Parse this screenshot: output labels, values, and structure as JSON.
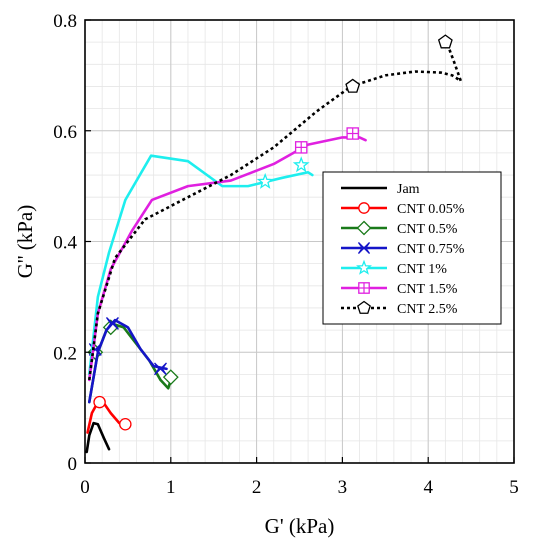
{
  "chart_data": {
    "type": "line",
    "title": "",
    "xlabel": "G' (kPa)",
    "ylabel": "G'' (kPa)",
    "xlim": [
      0,
      5
    ],
    "ylim": [
      0,
      0.8
    ],
    "x_ticks": [
      0,
      1,
      2,
      3,
      4,
      5
    ],
    "y_ticks": [
      0,
      0.2,
      0.4,
      0.6,
      0.8
    ],
    "x_tick_labels": [
      "0",
      "1",
      "2",
      "3",
      "4",
      "5"
    ],
    "y_tick_labels": [
      "0",
      "0.2",
      "0.4",
      "0.6",
      "0.8"
    ],
    "grid": true,
    "minor_grid": true,
    "legend_position": "right",
    "series": [
      {
        "name": "Jam",
        "color": "#000000",
        "dash": "solid",
        "marker": "none",
        "points": [
          [
            0.02,
            0.02
          ],
          [
            0.05,
            0.05
          ],
          [
            0.1,
            0.072
          ],
          [
            0.15,
            0.07
          ],
          [
            0.22,
            0.045
          ],
          [
            0.28,
            0.025
          ]
        ],
        "marker_points": []
      },
      {
        "name": "CNT 0.05%",
        "color": "#ff0000",
        "dash": "solid",
        "marker": "circle",
        "points": [
          [
            0.03,
            0.055
          ],
          [
            0.08,
            0.09
          ],
          [
            0.15,
            0.11
          ],
          [
            0.22,
            0.108
          ],
          [
            0.3,
            0.09
          ],
          [
            0.4,
            0.072
          ],
          [
            0.47,
            0.07
          ]
        ],
        "marker_points": [
          [
            0.17,
            0.11
          ],
          [
            0.47,
            0.07
          ]
        ]
      },
      {
        "name": "CNT 0.5%",
        "color": "#1a7a1a",
        "dash": "solid",
        "marker": "diamond",
        "points": [
          [
            0.05,
            0.11
          ],
          [
            0.15,
            0.2
          ],
          [
            0.25,
            0.24
          ],
          [
            0.35,
            0.25
          ],
          [
            0.45,
            0.245
          ],
          [
            0.6,
            0.215
          ],
          [
            0.75,
            0.185
          ],
          [
            0.88,
            0.15
          ],
          [
            0.97,
            0.135
          ],
          [
            0.99,
            0.145
          ]
        ],
        "marker_points": [
          [
            0.12,
            0.2
          ],
          [
            0.3,
            0.245
          ],
          [
            1.0,
            0.155
          ]
        ]
      },
      {
        "name": "CNT 0.75%",
        "color": "#1515c8",
        "dash": "solid",
        "marker": "bowtie",
        "points": [
          [
            0.05,
            0.11
          ],
          [
            0.15,
            0.2
          ],
          [
            0.25,
            0.24
          ],
          [
            0.35,
            0.258
          ],
          [
            0.5,
            0.245
          ],
          [
            0.65,
            0.205
          ],
          [
            0.8,
            0.175
          ],
          [
            0.95,
            0.17
          ]
        ],
        "marker_points": [
          [
            0.12,
            0.205
          ],
          [
            0.32,
            0.252
          ],
          [
            0.88,
            0.17
          ]
        ]
      },
      {
        "name": "CNT 1%",
        "color": "#1eeeee",
        "dash": "solid",
        "marker": "star",
        "points": [
          [
            0.05,
            0.16
          ],
          [
            0.15,
            0.3
          ],
          [
            0.28,
            0.38
          ],
          [
            0.47,
            0.475
          ],
          [
            0.77,
            0.555
          ],
          [
            1.2,
            0.545
          ],
          [
            1.6,
            0.5
          ],
          [
            1.9,
            0.5
          ],
          [
            2.3,
            0.515
          ],
          [
            2.6,
            0.525
          ],
          [
            2.65,
            0.52
          ]
        ],
        "marker_points": [
          [
            2.1,
            0.508
          ],
          [
            2.52,
            0.538
          ]
        ]
      },
      {
        "name": "CNT 1.5%",
        "color": "#e020e0",
        "dash": "solid",
        "marker": "square-plus",
        "points": [
          [
            0.05,
            0.15
          ],
          [
            0.15,
            0.27
          ],
          [
            0.3,
            0.35
          ],
          [
            0.55,
            0.42
          ],
          [
            0.78,
            0.475
          ],
          [
            1.2,
            0.5
          ],
          [
            1.7,
            0.51
          ],
          [
            2.2,
            0.54
          ],
          [
            2.6,
            0.575
          ],
          [
            3.0,
            0.588
          ],
          [
            3.2,
            0.588
          ],
          [
            3.27,
            0.583
          ]
        ],
        "marker_points": [
          [
            2.52,
            0.57
          ],
          [
            3.12,
            0.595
          ]
        ]
      },
      {
        "name": "CNT 2.5%",
        "color": "#000000",
        "dash": "dotted",
        "marker": "pentagon",
        "points": [
          [
            0.05,
            0.15
          ],
          [
            0.15,
            0.27
          ],
          [
            0.35,
            0.37
          ],
          [
            0.7,
            0.44
          ],
          [
            1.2,
            0.48
          ],
          [
            1.7,
            0.52
          ],
          [
            2.2,
            0.57
          ],
          [
            2.7,
            0.635
          ],
          [
            3.1,
            0.68
          ],
          [
            3.5,
            0.7
          ],
          [
            3.85,
            0.707
          ],
          [
            4.15,
            0.705
          ],
          [
            4.28,
            0.7
          ],
          [
            4.38,
            0.69
          ],
          [
            4.3,
            0.725
          ],
          [
            4.22,
            0.758
          ]
        ],
        "marker_points": [
          [
            3.12,
            0.68
          ],
          [
            4.2,
            0.76
          ]
        ]
      }
    ]
  }
}
